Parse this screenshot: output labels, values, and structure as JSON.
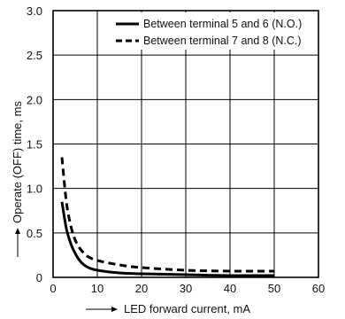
{
  "chart_data": {
    "type": "line",
    "xlabel": "LED forward current, mA",
    "ylabel": "Operate (OFF) time, ms",
    "xlim": [
      0,
      60
    ],
    "ylim": [
      0,
      3.0
    ],
    "xticks": [
      "10",
      "20",
      "30",
      "40",
      "50",
      "60"
    ],
    "yticks": [
      "0",
      "0.5",
      "1.0",
      "1.5",
      "2.0",
      "2.5",
      "3.0"
    ],
    "origin_label": "0",
    "grid": true,
    "legend_position": "top-right",
    "series": [
      {
        "name": "Between terminal 5 and 6 (N.O.)",
        "style": "solid",
        "color": "#000000",
        "x": [
          2,
          3,
          4,
          5,
          6,
          7,
          8,
          10,
          15,
          20,
          30,
          40,
          50
        ],
        "y": [
          0.85,
          0.55,
          0.38,
          0.27,
          0.19,
          0.14,
          0.11,
          0.08,
          0.05,
          0.04,
          0.03,
          0.02,
          0.02
        ]
      },
      {
        "name": "Between terminal 7 and 8 (N.C.)",
        "style": "dashed",
        "color": "#000000",
        "x": [
          2,
          3,
          4,
          5,
          6,
          7,
          8,
          10,
          15,
          20,
          30,
          40,
          50
        ],
        "y": [
          1.35,
          0.85,
          0.58,
          0.42,
          0.33,
          0.27,
          0.23,
          0.19,
          0.14,
          0.11,
          0.08,
          0.07,
          0.07
        ]
      }
    ]
  }
}
